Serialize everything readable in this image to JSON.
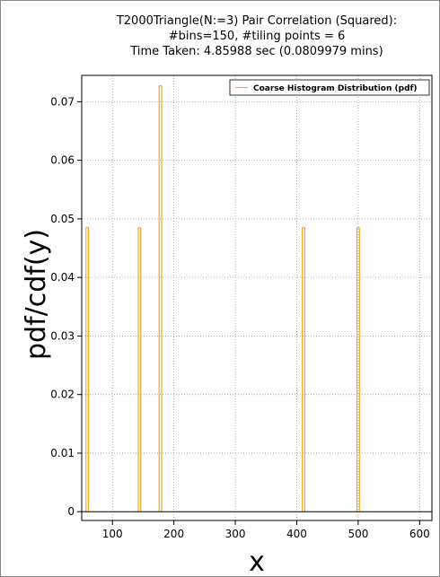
{
  "chart_data": {
    "type": "bar",
    "title_lines": [
      "T2000Triangle(N:=3) Pair Correlation (Squared):",
      "#bins=150, #tiling points = 6",
      "Time Taken: 4.85988 sec (0.0809979 mins)"
    ],
    "xlabel": "x",
    "ylabel": "pdf/cdf(y)",
    "xlim": [
      50,
      620
    ],
    "ylim": [
      -0.0015,
      0.0745
    ],
    "xticks": [
      100,
      200,
      300,
      400,
      500,
      600
    ],
    "yticks": [
      0,
      0.01,
      0.02,
      0.03,
      0.04,
      0.05,
      0.06,
      0.07
    ],
    "ytick_labels": [
      "0",
      "0.01",
      "0.02",
      "0.03",
      "0.04",
      "0.05",
      "0.06",
      "0.07"
    ],
    "grid": true,
    "legend_position": "top-right",
    "series": [
      {
        "name": "Coarse Histogram Distribution (pdf)",
        "color": "#f5a623",
        "bars": [
          {
            "x0": 57,
            "x1": 61,
            "y": 0.0485
          },
          {
            "x0": 142,
            "x1": 146,
            "y": 0.0485
          },
          {
            "x0": 176,
            "x1": 180,
            "y": 0.0727
          },
          {
            "x0": 409,
            "x1": 413,
            "y": 0.0485
          },
          {
            "x0": 498,
            "x1": 502,
            "y": 0.0485
          }
        ]
      }
    ]
  }
}
